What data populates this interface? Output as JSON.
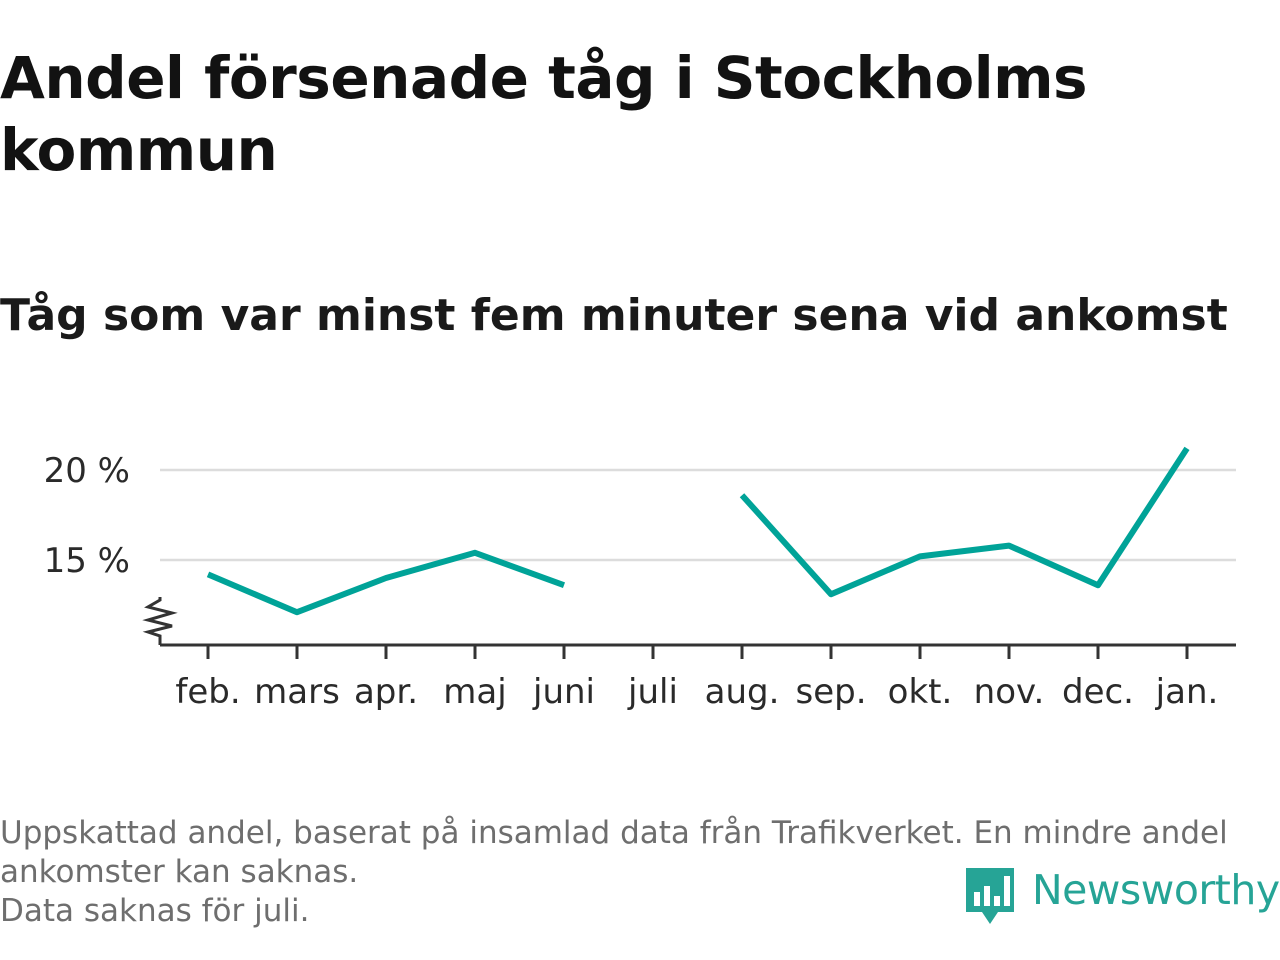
{
  "title": "Andel försenade tåg i Stockholms kommun",
  "subtitle": "Tåg som var minst fem minuter sena vid ankomst",
  "footnote": {
    "line1": "Uppskattad andel, baserat på insamlad data från Trafikverket. En mindre andel ankomster kan saknas.",
    "line2": "Data saknas för juli."
  },
  "logo": {
    "text": "Newsworthy",
    "icon": "newsworthy-logo-icon"
  },
  "colors": {
    "series": "#00a398",
    "grid": "#dcdcdc",
    "axis": "#333333"
  },
  "chart_data": {
    "type": "line",
    "categories": [
      "feb.",
      "mars",
      "apr.",
      "maj",
      "juni",
      "juli",
      "aug.",
      "sep.",
      "okt.",
      "nov.",
      "dec.",
      "jan."
    ],
    "series": [
      {
        "values": [
          14.2,
          12.1,
          14.0,
          15.4,
          13.6,
          null,
          18.6,
          13.1,
          15.2,
          15.8,
          13.6,
          21.2
        ]
      }
    ],
    "yticks": [
      15,
      20
    ],
    "ytick_labels": [
      "15 %",
      "20 %"
    ],
    "ylim": [
      10.5,
      22
    ],
    "axis_break": true,
    "grid": true,
    "xlabel": "",
    "ylabel": ""
  }
}
